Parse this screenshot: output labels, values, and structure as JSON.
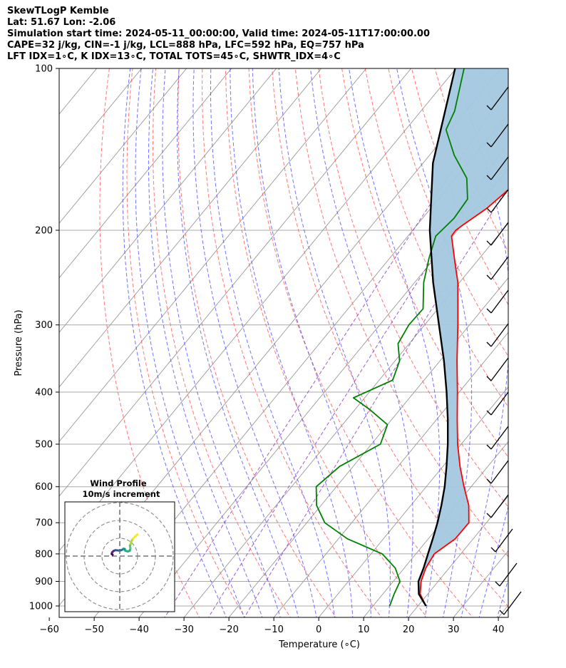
{
  "header": {
    "line1": "SkewTLogP Kemble",
    "line2": "Lat: 51.67   Lon: -2.06",
    "line3": "Simulation start time: 2024-05-11_00:00:00, Valid time: 2024-05-11T17:00:00.00",
    "line4": "CAPE=32 j/kg, CIN=-1 j/kg, LCL=888 hPa, LFC=592 hPa, EQ=757 hPa",
    "line5": "LFT IDX=1∘C, K IDX=13∘C, TOTAL TOTS=45∘C, SHWTR_IDX=4∘C"
  },
  "colors": {
    "temperature": "#ff0000",
    "dewpoint": "#008000",
    "parcel": "#000000",
    "cape_fill": "#a4c8e0",
    "dry_adiabat": "#ff5555",
    "moist_adiabat": "#4444ff",
    "mixing_ratio": "#8833cc",
    "isotherm": "#999999",
    "isobar": "#aaaaaa"
  },
  "chart_data": [
    {
      "type": "line",
      "subtype": "skew-T log-P",
      "xlabel": "Temperature (∘C)",
      "ylabel": "Pressure (hPa)",
      "xlim": [
        -60,
        40
      ],
      "ylim": [
        1050,
        100
      ],
      "y_scale": "log",
      "x_ticks": [
        -60,
        -50,
        -40,
        -30,
        -20,
        -10,
        0,
        10,
        20,
        30,
        40
      ],
      "x_tick_labels": [
        "−60",
        "−50",
        "−40",
        "−30",
        "−20",
        "−10",
        "0",
        "10",
        "20",
        "30",
        "40"
      ],
      "y_ticks": [
        1000,
        900,
        800,
        700,
        600,
        500,
        400,
        300,
        200,
        100
      ],
      "y_tick_labels": [
        "1000",
        "900",
        "800",
        "700",
        "600",
        "500",
        "400",
        "300",
        "200",
        "100"
      ],
      "grid": true,
      "series": [
        {
          "role": "temperature",
          "points": [
            [
              1000,
              21.8
            ],
            [
              950,
              18.3
            ],
            [
              900,
              16.2
            ],
            [
              850,
              14.8
            ],
            [
              800,
              14.1
            ],
            [
              750,
              16.0
            ],
            [
              700,
              16.1
            ],
            [
              650,
              12.9
            ],
            [
              600,
              8.4
            ],
            [
              550,
              3.8
            ],
            [
              500,
              -0.8
            ],
            [
              450,
              -5.4
            ],
            [
              400,
              -10.4
            ],
            [
              350,
              -16.2
            ],
            [
              300,
              -22.6
            ],
            [
              250,
              -30.4
            ],
            [
              230,
              -34.6
            ],
            [
              205,
              -40.3
            ],
            [
              200,
              -40.4
            ],
            [
              195,
              -39.7
            ],
            [
              182,
              -37.5
            ],
            [
              165,
              -35.8
            ],
            [
              145,
              -33.4
            ],
            [
              130,
              -31.6
            ],
            [
              112,
              -28.4
            ],
            [
              100,
              -26.3
            ]
          ]
        },
        {
          "role": "dewpoint",
          "points": [
            [
              1000,
              13.7
            ],
            [
              950,
              12.5
            ],
            [
              900,
              11.5
            ],
            [
              850,
              8.0
            ],
            [
              800,
              2.5
            ],
            [
              750,
              -8.0
            ],
            [
              700,
              -16.0
            ],
            [
              650,
              -21.0
            ],
            [
              600,
              -24.5
            ],
            [
              550,
              -23.0
            ],
            [
              500,
              -18.0
            ],
            [
              460,
              -20.0
            ],
            [
              430,
              -27.0
            ],
            [
              410,
              -32.5
            ],
            [
              380,
              -27.0
            ],
            [
              350,
              -29.0
            ],
            [
              325,
              -32.5
            ],
            [
              300,
              -33.5
            ],
            [
              280,
              -33.3
            ],
            [
              250,
              -38.0
            ],
            [
              225,
              -41.3
            ],
            [
              205,
              -43.8
            ],
            [
              190,
              -43.0
            ],
            [
              175,
              -43.5
            ],
            [
              160,
              -47.5
            ],
            [
              145,
              -54.5
            ],
            [
              130,
              -61.0
            ],
            [
              120,
              -62.5
            ],
            [
              100,
              -68.2
            ]
          ]
        },
        {
          "role": "parcel",
          "points": [
            [
              1000,
              21.8
            ],
            [
              950,
              18.0
            ],
            [
              900,
              15.6
            ],
            [
              850,
              14.3
            ],
            [
              800,
              12.7
            ],
            [
              750,
              11.0
            ],
            [
              700,
              9.1
            ],
            [
              650,
              6.8
            ],
            [
              600,
              4.1
            ],
            [
              550,
              0.8
            ],
            [
              500,
              -3.0
            ],
            [
              450,
              -7.5
            ],
            [
              400,
              -12.8
            ],
            [
              350,
              -19.1
            ],
            [
              300,
              -26.8
            ],
            [
              250,
              -35.9
            ],
            [
              200,
              -46.2
            ],
            [
              150,
              -57.8
            ],
            [
              100,
              -70.2
            ]
          ]
        }
      ]
    },
    {
      "type": "line",
      "subtype": "hodograph",
      "title": "Wind Profile",
      "subtitle": "10m/s increment",
      "ring_increment": 10,
      "units": "m/s",
      "points_uv": [
        [
          -4.0,
          0.7
        ],
        [
          -4.5,
          1.2
        ],
        [
          -4.3,
          2.1
        ],
        [
          -3.6,
          2.8
        ],
        [
          -2.5,
          3.3
        ],
        [
          -1.3,
          3.2
        ],
        [
          -0.2,
          3.1
        ],
        [
          0.8,
          3.3
        ],
        [
          1.7,
          3.7
        ],
        [
          2.0,
          4.1
        ],
        [
          2.8,
          4.0
        ],
        [
          3.1,
          3.0
        ],
        [
          4.6,
          2.6
        ],
        [
          5.6,
          3.0
        ],
        [
          6.0,
          4.3
        ],
        [
          5.7,
          5.8
        ],
        [
          6.2,
          7.0
        ],
        [
          6.7,
          8.7
        ],
        [
          7.5,
          9.8
        ],
        [
          9.0,
          11.3
        ],
        [
          10.0,
          12.2
        ]
      ]
    }
  ]
}
